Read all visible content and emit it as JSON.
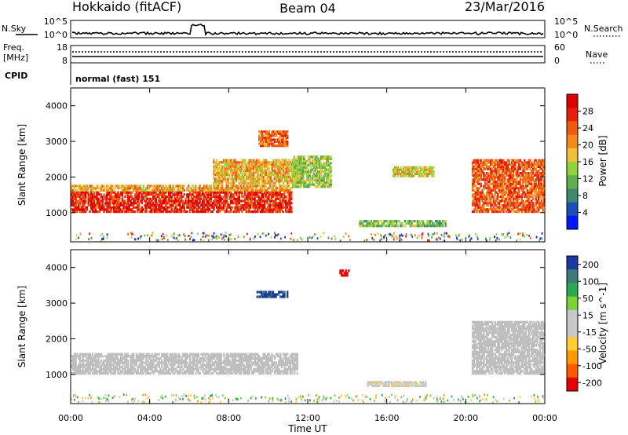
{
  "header": {
    "radar": "Hokkaido (fitACF)",
    "beam": "Beam 04",
    "date": "23/Mar/2016"
  },
  "nsky_panel": {
    "left_label": "N.Sky",
    "right_label": "N.Search",
    "left_ticks": [
      "10^5",
      "10^0"
    ],
    "right_ticks": [
      "10^5",
      "10^0"
    ]
  },
  "freq_panel": {
    "left_label_1": "Freq.",
    "left_label_2": "[MHz]",
    "right_label": "Nave",
    "left_ticks": [
      "18",
      "8"
    ],
    "right_ticks": [
      "60",
      "0"
    ]
  },
  "cpid_panel": {
    "label": "CPID",
    "text": "normal (fast) 151"
  },
  "colors": {
    "power_scale": [
      "#0018ff",
      "#1d4fb8",
      "#3b8a6f",
      "#5fae50",
      "#8fd43c",
      "#f0c23a",
      "#f28a1e",
      "#ee5a12",
      "#e81e0c",
      "#dd0000"
    ],
    "velocity_scale": [
      "#e80000",
      "#ff5a00",
      "#ff9a00",
      "#ffcc33",
      "#c8c8c8",
      "#c8c8c8",
      "#7ad23a",
      "#2aa84f",
      "#3d7a7a",
      "#1a3aa0"
    ],
    "ground_scatter": "#bfbfbf"
  },
  "chart_data": [
    {
      "type": "heatmap",
      "name": "Power",
      "ylabel": "Slant Range [km]",
      "colorbar_label": "Power [dB]",
      "colorbar_ticks": [
        4,
        8,
        12,
        16,
        20,
        24,
        28
      ],
      "colorbar_range": [
        0,
        32
      ],
      "y_ticks": [
        1000,
        2000,
        3000,
        4000
      ],
      "ylim": [
        180,
        4500
      ],
      "xlim": [
        0,
        24
      ],
      "features": [
        {
          "t": [
            0,
            11.2
          ],
          "r": [
            1000,
            1600
          ],
          "value": 27
        },
        {
          "t": [
            0,
            11.2
          ],
          "r": [
            1600,
            1780
          ],
          "value": 20
        },
        {
          "t": [
            7.2,
            11.8
          ],
          "r": [
            1800,
            2500
          ],
          "value": 19
        },
        {
          "t": [
            9.5,
            11
          ],
          "r": [
            2850,
            3300
          ],
          "value": 23
        },
        {
          "t": [
            11.2,
            13.2
          ],
          "r": [
            1700,
            2600
          ],
          "value": 14
        },
        {
          "t": [
            16.3,
            18.4
          ],
          "r": [
            2000,
            2300
          ],
          "value": 17
        },
        {
          "t": [
            20.3,
            24
          ],
          "r": [
            1000,
            2500
          ],
          "value": 24
        },
        {
          "t": [
            14.6,
            19
          ],
          "r": [
            600,
            800
          ],
          "value": 12
        }
      ]
    },
    {
      "type": "heatmap",
      "name": "Velocity",
      "ylabel": "Slant Range [km]",
      "colorbar_label": "Velocity [m s^-1]",
      "colorbar_ticks": [
        "200",
        "100",
        "50",
        "15",
        "-15",
        "-50",
        "-100",
        "-200"
      ],
      "colorbar_range": [
        -250,
        250
      ],
      "y_ticks": [
        1000,
        2000,
        3000,
        4000
      ],
      "ylim": [
        180,
        4500
      ],
      "xlim": [
        0,
        24
      ],
      "xlabel": "Time UT",
      "x_ticks": [
        "00:00",
        "04:00",
        "08:00",
        "12:00",
        "16:00",
        "20:00",
        "00:00"
      ],
      "features": [
        {
          "t": [
            0,
            11.5
          ],
          "r": [
            1000,
            1600
          ],
          "value": 0
        },
        {
          "t": [
            9.4,
            11
          ],
          "r": [
            3150,
            3350
          ],
          "value": 210
        },
        {
          "t": [
            13.6,
            14.1
          ],
          "r": [
            3750,
            3950
          ],
          "value": -220
        },
        {
          "t": [
            15,
            18
          ],
          "r": [
            650,
            800
          ],
          "value": -40
        },
        {
          "t": [
            20.3,
            24
          ],
          "r": [
            1000,
            2500
          ],
          "value": 0
        }
      ]
    }
  ]
}
